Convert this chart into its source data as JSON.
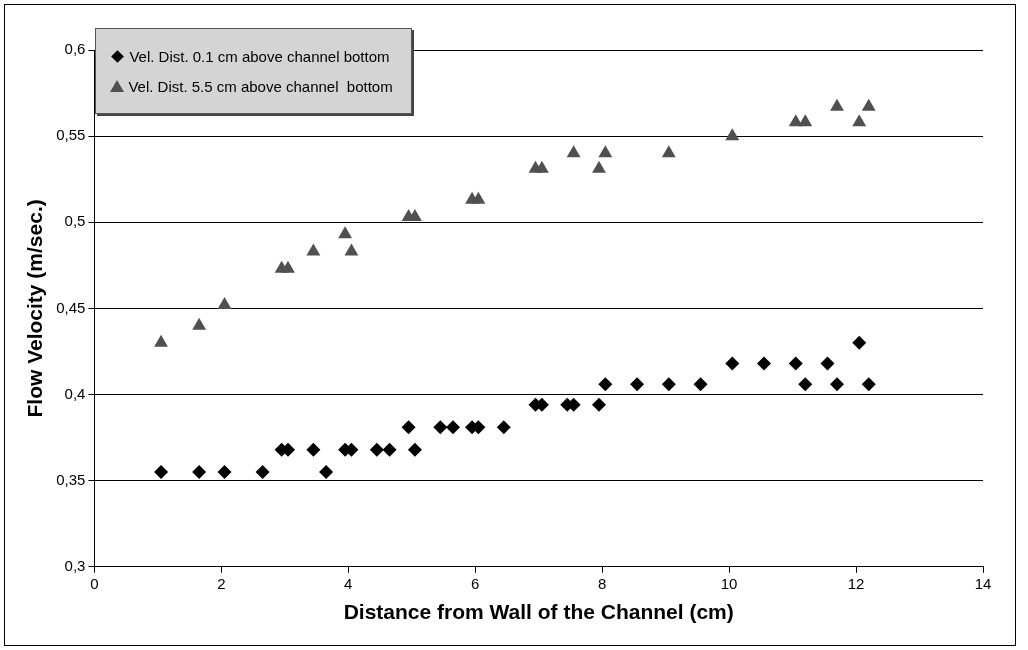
{
  "chart_data": {
    "type": "scatter",
    "xlabel": "Distance from Wall of the Channel (cm)",
    "ylabel": "Flow Velocity (m/sec.)",
    "xlim": [
      0,
      14
    ],
    "xticks": [
      0,
      2,
      4,
      6,
      8,
      10,
      12,
      14
    ],
    "ylim": [
      0.3,
      0.6
    ],
    "yticks": [
      {
        "value": 0.3,
        "label": "0,3"
      },
      {
        "value": 0.35,
        "label": "0,35"
      },
      {
        "value": 0.4,
        "label": "0,4"
      },
      {
        "value": 0.45,
        "label": "0,45"
      },
      {
        "value": 0.5,
        "label": "0,5"
      },
      {
        "value": 0.55,
        "label": "0,55"
      },
      {
        "value": 0.6,
        "label": "0,6"
      }
    ],
    "grid": "y",
    "legend": "top left",
    "series": [
      {
        "name": "Vel. Dist. 0.1 cm above channel bottom",
        "color": "#000000",
        "marker": "diamond",
        "x": [
          1.05,
          1.65,
          2.05,
          2.65,
          2.95,
          3.05,
          3.45,
          3.65,
          3.95,
          4.05,
          4.45,
          4.65,
          4.95,
          5.05,
          5.45,
          5.65,
          5.95,
          6.05,
          6.45,
          6.95,
          7.05,
          7.45,
          7.55,
          7.95,
          8.05,
          8.55,
          9.05,
          9.55,
          10.05,
          10.55,
          11.05,
          11.2,
          11.55,
          11.7,
          12.05,
          12.2
        ],
        "values": [
          0.355,
          0.355,
          0.355,
          0.355,
          0.368,
          0.368,
          0.368,
          0.355,
          0.368,
          0.368,
          0.368,
          0.368,
          0.381,
          0.368,
          0.381,
          0.381,
          0.381,
          0.381,
          0.381,
          0.394,
          0.394,
          0.394,
          0.394,
          0.394,
          0.406,
          0.406,
          0.406,
          0.406,
          0.418,
          0.418,
          0.418,
          0.406,
          0.418,
          0.406,
          0.43,
          0.406
        ]
      },
      {
        "name": "Vel. Dist. 5.5 cm above channel  bottom",
        "color": "#505050",
        "marker": "triangle",
        "x": [
          1.05,
          1.65,
          2.05,
          2.95,
          3.05,
          3.45,
          3.95,
          4.05,
          4.95,
          5.05,
          5.95,
          6.05,
          6.95,
          7.05,
          7.55,
          7.95,
          8.05,
          9.05,
          10.05,
          11.05,
          11.2,
          11.7,
          12.05,
          12.2
        ],
        "values": [
          0.43,
          0.44,
          0.452,
          0.473,
          0.473,
          0.483,
          0.493,
          0.483,
          0.503,
          0.503,
          0.513,
          0.513,
          0.531,
          0.531,
          0.54,
          0.531,
          0.54,
          0.54,
          0.55,
          0.558,
          0.558,
          0.567,
          0.558,
          0.567
        ]
      }
    ]
  }
}
